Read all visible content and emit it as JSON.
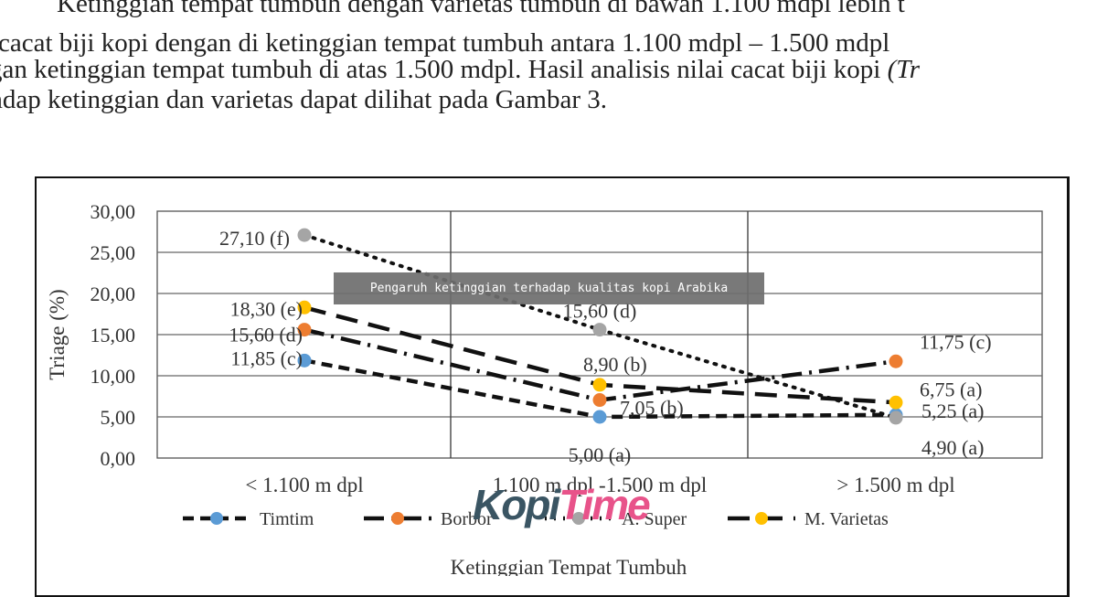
{
  "paragraph": {
    "lines": [
      "Ketinggian  tempat  tumbuh  dengan  varietas  tumbuh  di  bawah  1.100  mdpl  lebih  t",
      " cacat biji kopi dengan di ketinggian tempat tumbuh antara 1.100 mdpl – 1.500 mdpl",
      "gan ketinggian tempat tumbuh di atas 1.500 mdpl. Hasil analisis nilai cacat biji kopi ",
      "adap ketinggian dan varietas dapat dilihat pada Gambar 3."
    ],
    "italic_tail": "(Tr"
  },
  "overlay": {
    "banner_text": "Pengaruh ketinggian terhadap kualitas kopi Arabika",
    "logo_part1": "Kopi",
    "logo_part2": "Time",
    "logo_colors": {
      "kopi": "#3a5563",
      "time": "#e8538a"
    }
  },
  "chart_data": {
    "type": "line",
    "title": "",
    "xlabel": "Ketinggian Tempat Tumbuh",
    "ylabel": "Triage  (%)",
    "categories": [
      "< 1.100 m dpl",
      "1.100 m dpl -1.500 m dpl",
      "> 1.500 m dpl"
    ],
    "ylim": [
      0,
      30
    ],
    "yticks": [
      "0,00",
      "5,00",
      "10,00",
      "15,00",
      "20,00",
      "25,00",
      "30,00"
    ],
    "grid": true,
    "legend_position": "bottom",
    "series": [
      {
        "name": "Timtim",
        "values": [
          11.85,
          5.0,
          5.25
        ],
        "labels": [
          "11,85 (c)",
          "5,00 (a)",
          "5,25 (a)"
        ],
        "marker_color": "#5b9bd5",
        "dash": "12,7"
      },
      {
        "name": "Borbor",
        "values": [
          15.6,
          7.05,
          11.75
        ],
        "labels": [
          "15,60 (d)",
          "7,05 (b)",
          "11,75 (c)"
        ],
        "marker_color": "#ed7d31",
        "dash": "22,8,3,8"
      },
      {
        "name": "A. Super",
        "values": [
          27.1,
          15.6,
          4.9
        ],
        "labels": [
          "27,10 (f)",
          "15,60 (d)",
          "4,90 (a)"
        ],
        "marker_color": "#a5a5a5",
        "dash": "2,8"
      },
      {
        "name": "M. Varietas",
        "values": [
          18.3,
          8.9,
          6.75
        ],
        "labels": [
          "18,30 (e)",
          "8,90 (b)",
          "6,75 (a)"
        ],
        "marker_color": "#ffc000",
        "dash": "24,12"
      }
    ]
  }
}
